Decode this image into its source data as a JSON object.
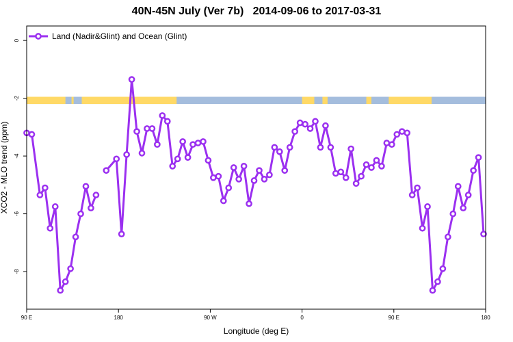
{
  "colors": {
    "series": "#9b30f0",
    "band_land": "#ffd966",
    "band_ocean": "#a4bddd",
    "axis": "#000000"
  },
  "chart_data": {
    "type": "line",
    "title": "40N-45N July (Ver 7b)   2014-09-06 to 2017-03-31",
    "xlabel": "Longitude (deg E)",
    "ylabel": "XCO2 - MLO trend (ppm)",
    "xlim": [
      90,
      540
    ],
    "ylim": [
      -9.3,
      0.5
    ],
    "x_ticks": [
      {
        "value": 90,
        "label": "90 E"
      },
      {
        "value": 180,
        "label": "180"
      },
      {
        "value": 270,
        "label": "90 W"
      },
      {
        "value": 360,
        "label": "0"
      },
      {
        "value": 450,
        "label": "90 E"
      },
      {
        "value": 540,
        "label": "180"
      }
    ],
    "y_ticks": [
      {
        "value": 0,
        "label": "0"
      },
      {
        "value": -2,
        "label": "-2"
      },
      {
        "value": -4,
        "label": "-4"
      },
      {
        "value": -6,
        "label": "-6"
      },
      {
        "value": -8,
        "label": "-8"
      }
    ],
    "grid": false,
    "legend_position": "top-left",
    "land_band": {
      "y_range": [
        -2.2,
        -1.95
      ],
      "land_intervals": [
        [
          90,
          128
        ],
        [
          134,
          136
        ],
        [
          144,
          237
        ],
        [
          360,
          372
        ],
        [
          380,
          385
        ],
        [
          423,
          428
        ],
        [
          445,
          487
        ]
      ]
    },
    "series": [
      {
        "name": "Land (Nadir&Glint) and Ocean (Glint)",
        "color": "#9b30f0",
        "x": [
          90,
          95,
          103,
          108,
          113,
          118,
          123,
          128,
          133,
          138,
          143,
          148,
          153,
          158,
          163,
          168,
          178,
          183,
          188,
          193,
          198,
          203,
          208,
          213,
          218,
          223,
          228,
          233,
          238,
          243,
          248,
          253,
          258,
          263,
          268,
          273,
          278,
          283,
          288,
          293,
          298,
          303,
          308,
          313,
          318,
          323,
          328,
          333,
          338,
          343,
          348,
          353,
          358,
          363,
          368,
          373,
          378,
          383,
          388,
          393,
          398,
          403,
          408,
          413,
          418,
          423,
          428,
          433,
          438,
          443,
          448,
          453,
          458,
          463,
          468,
          473,
          478,
          483,
          488,
          493,
          498,
          503,
          508,
          513,
          518,
          523,
          528,
          533,
          538
        ],
        "y": [
          -3.2,
          -3.25,
          -5.35,
          -5.1,
          -6.5,
          -5.75,
          -8.65,
          -8.35,
          -7.9,
          -6.8,
          -6.0,
          -5.05,
          -5.8,
          -5.35,
          null,
          -4.5,
          -4.1,
          -6.7,
          -3.95,
          -1.35,
          -3.15,
          -3.9,
          -3.05,
          -3.05,
          -3.6,
          -2.6,
          -2.8,
          -4.35,
          -4.1,
          -3.5,
          -4.05,
          -3.6,
          -3.55,
          -3.5,
          -4.15,
          -4.75,
          -4.7,
          -5.55,
          -5.1,
          -4.4,
          -4.8,
          -4.35,
          -5.65,
          -4.85,
          -4.5,
          -4.8,
          -4.65,
          -3.7,
          -3.85,
          -4.5,
          -3.7,
          -3.15,
          -2.85,
          -2.9,
          -3.05,
          -2.8,
          -3.7,
          -2.95,
          -3.7,
          -4.6,
          -4.55,
          -4.75,
          -3.75,
          -4.95,
          -4.7,
          -4.3,
          -4.4,
          -4.15,
          -4.35,
          -3.55,
          -3.6,
          -3.25,
          -3.15,
          -3.2,
          -5.35,
          -5.1,
          -6.5,
          -5.75,
          -8.65,
          -8.35,
          -7.9,
          -6.8,
          -6.0,
          -5.05,
          -5.8,
          -5.35,
          -4.5,
          -4.05,
          -6.7
        ]
      }
    ]
  }
}
